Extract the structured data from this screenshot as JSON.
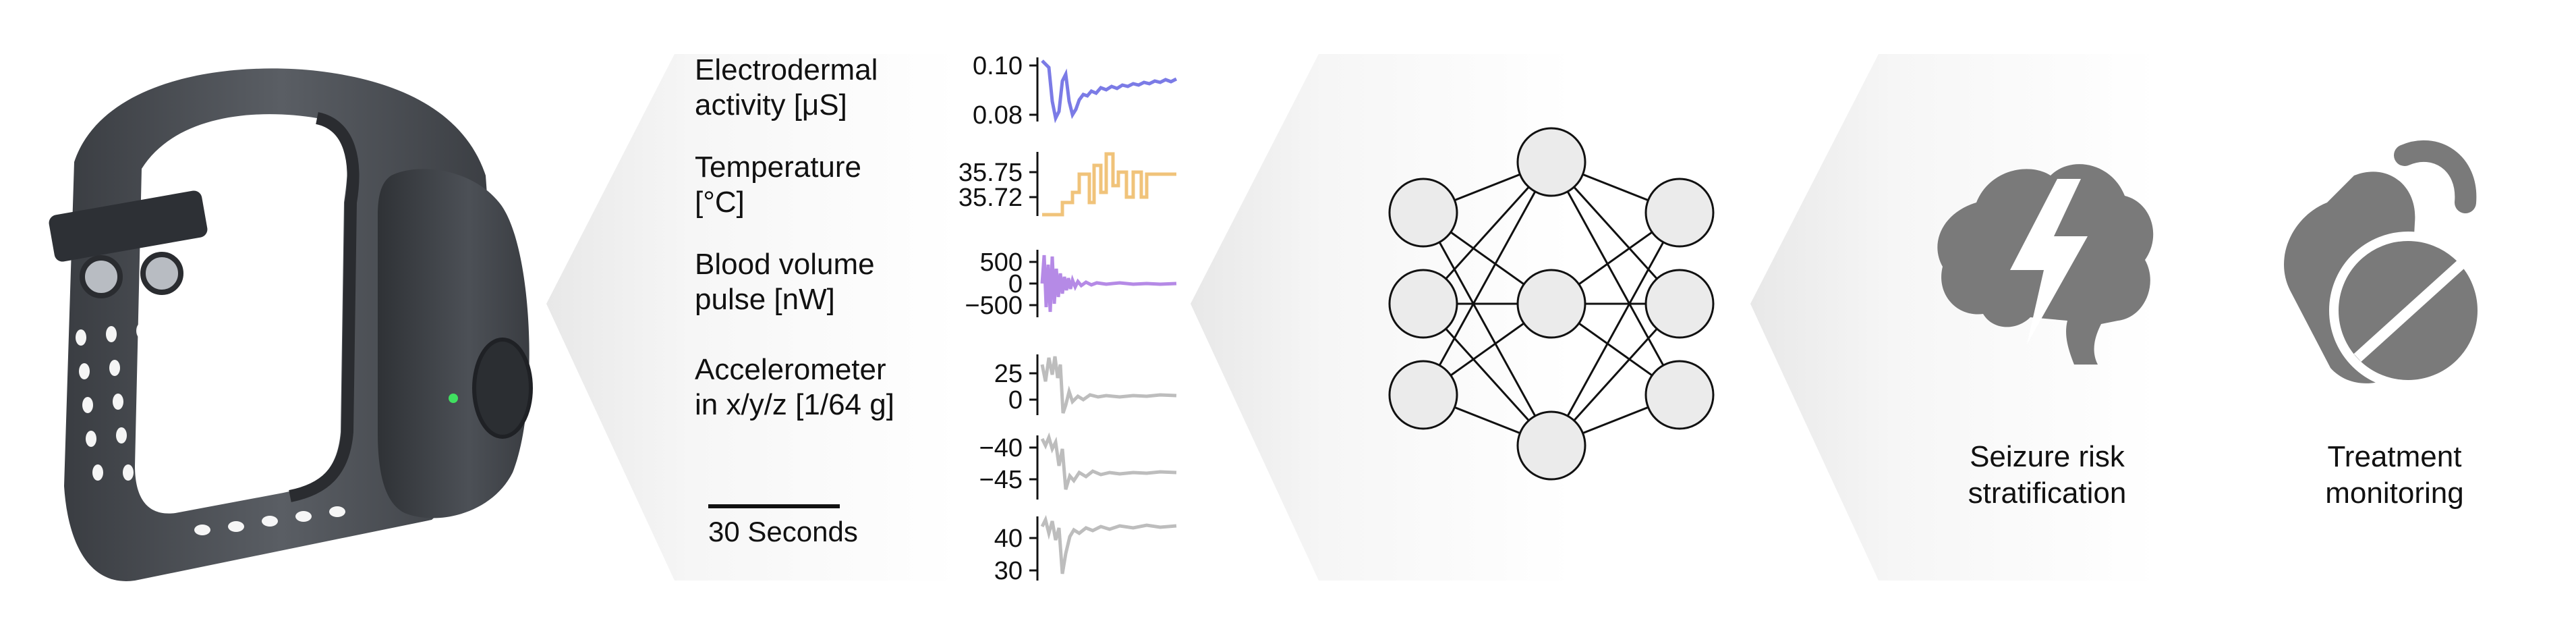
{
  "signals": [
    {
      "label_line1": "Electrodermal",
      "label_line2": "activity [μS]",
      "ticks": [
        "0.10",
        "0.08"
      ],
      "color": "#7b7be6"
    },
    {
      "label_line1": "Temperature",
      "label_line2": "[°C]",
      "ticks": [
        "35.75",
        "35.72"
      ],
      "color": "#f0c37a"
    },
    {
      "label_line1": "Blood volume",
      "label_line2": "pulse [nW]",
      "ticks": [
        "500",
        "0",
        "−500"
      ],
      "color": "#b58ae6"
    },
    {
      "label_line1": "Accelerometer",
      "label_line2": "in x/y/z [1/64 g]",
      "ticks_x": [
        "25",
        "0"
      ],
      "ticks_y": [
        "−40",
        "−45"
      ],
      "ticks_z": [
        "40",
        "30"
      ],
      "color": "#bdbdbd"
    }
  ],
  "scale_bar_label": "30 Seconds",
  "outputs": [
    {
      "caption_line1": "Seizure risk",
      "caption_line2": "stratification",
      "icon": "brain-lightning-icon"
    },
    {
      "caption_line1": "Treatment",
      "caption_line2": "monitoring",
      "icon": "pill-capsule-icon"
    }
  ],
  "colors": {
    "device": "#4a4e54",
    "arrow_panel": "#f2f2f2",
    "icon_gray": "#7a7a7a",
    "node_fill": "#ebebeb"
  }
}
